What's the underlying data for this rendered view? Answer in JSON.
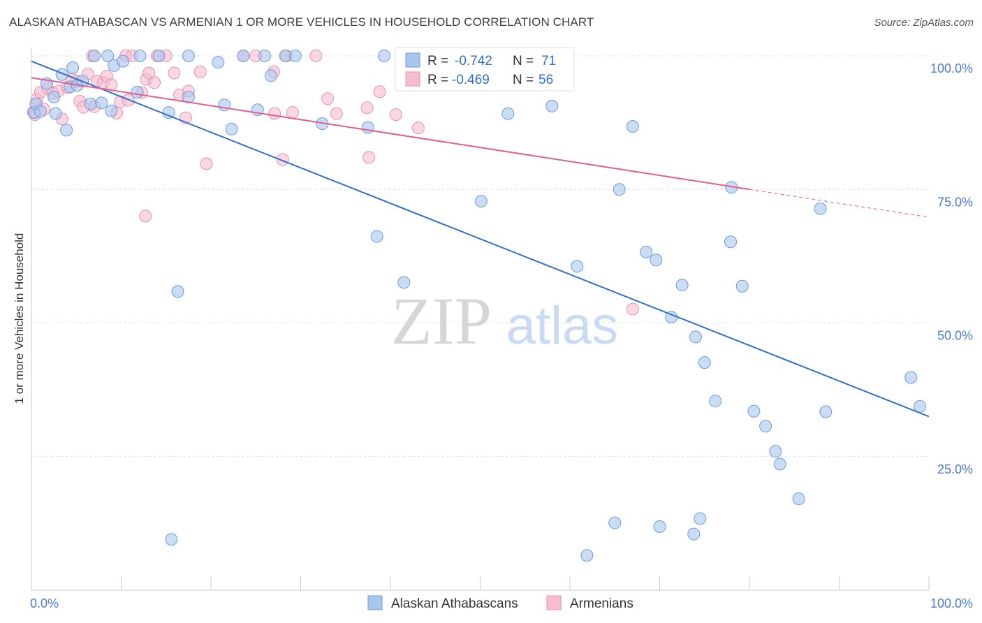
{
  "header": {
    "title": "ALASKAN ATHABASCAN VS ARMENIAN 1 OR MORE VEHICLES IN HOUSEHOLD CORRELATION CHART",
    "source": "Source: ZipAtlas.com"
  },
  "watermark": {
    "zip": "ZIP",
    "atlas": "atlas"
  },
  "legend_box": {
    "rows": [
      {
        "r_label": "R =",
        "r_value": "-0.742",
        "n_label": "N =",
        "n_value": "71"
      },
      {
        "r_label": "R =",
        "r_value": "-0.469",
        "n_label": "N =",
        "n_value": "56"
      }
    ]
  },
  "chart_data": {
    "type": "scatter",
    "title": "ALASKAN ATHABASCAN VS ARMENIAN 1 OR MORE VEHICLES IN HOUSEHOLD CORRELATION CHART",
    "xlabel": "",
    "ylabel": "1 or more Vehicles in Household",
    "xlim": [
      0,
      100
    ],
    "ylim": [
      0,
      100
    ],
    "x_tick_labels": [
      "0.0%",
      "100.0%"
    ],
    "y_tick_labels": [
      "100.0%",
      "75.0%",
      "50.0%",
      "25.0%"
    ],
    "y_ticks": [
      100,
      75,
      50,
      25
    ],
    "grid": true,
    "legend_placement": "bottom",
    "colors": {
      "alaskan_fill": "#a9c6ee",
      "alaskan_stroke": "#6f9bd8",
      "alaskan_line": "#2f6fd0",
      "armenian_fill": "#f6bcd0",
      "armenian_stroke": "#e890b0",
      "armenian_line": "#e0608a",
      "tick_label": "#4a7bd0"
    },
    "series": [
      {
        "name": "Alaskan Athabascans",
        "trend": {
          "x0": 0,
          "y0": 99.0,
          "x1": 100,
          "y1": 32.5
        },
        "points": [
          [
            0.3,
            89.4
          ],
          [
            0.5,
            91.0
          ],
          [
            1.0,
            89.6
          ],
          [
            1.7,
            94.8
          ],
          [
            2.5,
            92.3
          ],
          [
            2.7,
            89.2
          ],
          [
            3.4,
            96.5
          ],
          [
            3.9,
            86.1
          ],
          [
            4.3,
            94.2
          ],
          [
            4.6,
            97.8
          ],
          [
            5.1,
            94.5
          ],
          [
            5.7,
            95.3
          ],
          [
            6.6,
            91.0
          ],
          [
            7.0,
            100.0
          ],
          [
            7.8,
            91.2
          ],
          [
            8.9,
            89.7
          ],
          [
            8.5,
            100.0
          ],
          [
            9.2,
            98.2
          ],
          [
            10.2,
            99.0
          ],
          [
            11.8,
            93.2
          ],
          [
            12.1,
            100.0
          ],
          [
            14.2,
            100.0
          ],
          [
            15.3,
            89.4
          ],
          [
            16.3,
            55.9
          ],
          [
            17.5,
            92.3
          ],
          [
            17.5,
            100.0
          ],
          [
            20.8,
            98.8
          ],
          [
            21.5,
            90.8
          ],
          [
            22.3,
            86.3
          ],
          [
            23.6,
            100.0
          ],
          [
            25.2,
            89.9
          ],
          [
            26.0,
            100.0
          ],
          [
            26.7,
            96.3
          ],
          [
            28.3,
            100.0
          ],
          [
            29.4,
            100.0
          ],
          [
            32.4,
            87.3
          ],
          [
            37.5,
            86.6
          ],
          [
            38.5,
            66.2
          ],
          [
            39.3,
            100.0
          ],
          [
            41.5,
            57.6
          ],
          [
            50.1,
            72.8
          ],
          [
            53.1,
            89.2
          ],
          [
            58.0,
            90.6
          ],
          [
            60.8,
            60.6
          ],
          [
            65.5,
            75.0
          ],
          [
            67.0,
            86.8
          ],
          [
            68.5,
            63.3
          ],
          [
            69.6,
            61.8
          ],
          [
            72.5,
            57.1
          ],
          [
            74.0,
            47.4
          ],
          [
            75.0,
            42.6
          ],
          [
            76.2,
            35.4
          ],
          [
            77.9,
            65.2
          ],
          [
            79.2,
            56.9
          ],
          [
            80.5,
            33.5
          ],
          [
            81.8,
            30.7
          ],
          [
            82.9,
            26.0
          ],
          [
            83.4,
            23.6
          ],
          [
            85.5,
            17.1
          ],
          [
            87.9,
            71.4
          ],
          [
            88.5,
            33.4
          ],
          [
            98.0,
            39.8
          ],
          [
            99.0,
            34.4
          ],
          [
            78.0,
            75.4
          ],
          [
            15.6,
            9.5
          ],
          [
            61.9,
            6.5
          ],
          [
            65.0,
            12.6
          ],
          [
            70.0,
            11.9
          ],
          [
            73.8,
            10.5
          ],
          [
            74.5,
            13.4
          ],
          [
            71.3,
            51.1
          ]
        ]
      },
      {
        "name": "Armenians",
        "trend": {
          "x0": 0,
          "y0": 95.9,
          "x1": 100,
          "y1": 69.8
        },
        "points": [
          [
            0.2,
            89.5
          ],
          [
            0.6,
            91.9
          ],
          [
            1.0,
            93.2
          ],
          [
            1.4,
            90.0
          ],
          [
            1.8,
            93.9
          ],
          [
            2.4,
            93.0
          ],
          [
            3.0,
            93.4
          ],
          [
            3.4,
            88.2
          ],
          [
            4.0,
            94.1
          ],
          [
            4.5,
            95.6
          ],
          [
            5.0,
            95.3
          ],
          [
            5.4,
            91.5
          ],
          [
            5.8,
            90.4
          ],
          [
            6.3,
            96.6
          ],
          [
            6.8,
            100.0
          ],
          [
            7.0,
            90.5
          ],
          [
            7.3,
            95.3
          ],
          [
            8.0,
            95.0
          ],
          [
            8.4,
            96.2
          ],
          [
            8.9,
            94.6
          ],
          [
            9.5,
            89.3
          ],
          [
            9.9,
            91.4
          ],
          [
            10.5,
            100.0
          ],
          [
            10.8,
            91.7
          ],
          [
            11.2,
            100.0
          ],
          [
            12.3,
            93.1
          ],
          [
            12.8,
            95.6
          ],
          [
            12.7,
            70.0
          ],
          [
            13.1,
            96.8
          ],
          [
            13.7,
            95.0
          ],
          [
            14.0,
            100.0
          ],
          [
            15.0,
            100.0
          ],
          [
            15.9,
            96.8
          ],
          [
            16.5,
            92.7
          ],
          [
            17.2,
            88.4
          ],
          [
            17.5,
            93.4
          ],
          [
            18.8,
            97.0
          ],
          [
            19.5,
            79.8
          ],
          [
            23.6,
            100.0
          ],
          [
            25.0,
            100.0
          ],
          [
            27.0,
            97.0
          ],
          [
            27.1,
            89.2
          ],
          [
            28.0,
            80.6
          ],
          [
            28.4,
            100.0
          ],
          [
            29.1,
            89.4
          ],
          [
            31.7,
            100.0
          ],
          [
            33.0,
            92.0
          ],
          [
            34.0,
            89.2
          ],
          [
            37.4,
            90.3
          ],
          [
            37.6,
            81.0
          ],
          [
            38.8,
            93.3
          ],
          [
            40.6,
            89.0
          ],
          [
            43.1,
            86.5
          ],
          [
            67.0,
            52.6
          ],
          [
            45.2,
            100.0
          ],
          [
            0.4,
            89.0
          ]
        ]
      }
    ]
  },
  "bottom_legend": {
    "items": [
      {
        "label": "Alaskan Athabascans"
      },
      {
        "label": "Armenians"
      }
    ]
  }
}
